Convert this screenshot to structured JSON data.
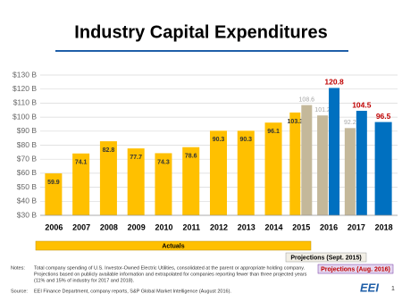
{
  "chart_data": {
    "type": "bar",
    "title": "Industry Capital Expenditures",
    "categories": [
      "2006",
      "2007",
      "2008",
      "2009",
      "2010",
      "2011",
      "2012",
      "2013",
      "2014",
      "2015",
      "2016",
      "2017",
      "2018"
    ],
    "series": [
      {
        "name": "Actuals",
        "color": "#ffc000",
        "label_color": "#333333",
        "values": [
          59.9,
          74.1,
          82.8,
          77.7,
          74.3,
          78.6,
          90.3,
          90.3,
          96.1,
          103.3,
          null,
          null,
          null
        ]
      },
      {
        "name": "Projections (Sept. 2015)",
        "color": "#c4b89a",
        "label_color": "#a6a6a6",
        "values": [
          null,
          null,
          null,
          null,
          null,
          null,
          null,
          null,
          null,
          108.6,
          101.2,
          92.2,
          null
        ]
      },
      {
        "name": "Projections (Aug. 2016)",
        "color": "#0070c0",
        "label_color": "#c00000",
        "values": [
          null,
          null,
          null,
          null,
          null,
          null,
          null,
          null,
          null,
          null,
          120.8,
          104.5,
          96.5
        ]
      }
    ],
    "ylim": [
      30,
      130
    ],
    "yticks": [
      {
        "value": 30,
        "label": "$30 B"
      },
      {
        "value": 40,
        "label": "$40 B"
      },
      {
        "value": 50,
        "label": "$50 B"
      },
      {
        "value": 60,
        "label": "$60 B"
      },
      {
        "value": 70,
        "label": "$70 B"
      },
      {
        "value": 80,
        "label": "$80 B"
      },
      {
        "value": 90,
        "label": "$90 B"
      },
      {
        "value": 100,
        "label": "$100 B"
      },
      {
        "value": 110,
        "label": "$110 B"
      },
      {
        "value": 120,
        "label": "$120 B"
      },
      {
        "value": 130,
        "label": "$130 B"
      }
    ],
    "grid": true,
    "notes_label": "Notes:",
    "notes": [
      "Total company spending of U.S. Investor-Owned Electric Utilities, consolidated at the parent or appropriate holding company.",
      "Projections based on publicly available information and extrapolated for companies reporting fewer than three projected years",
      "(11% and 15% of industry for 2017 and 2018)."
    ],
    "source_label": "Source:",
    "source": "EEI Finance Department, company reports, S&P Global Market Intelligence (August 2016).",
    "logo": "EEI",
    "page_number": "1"
  }
}
